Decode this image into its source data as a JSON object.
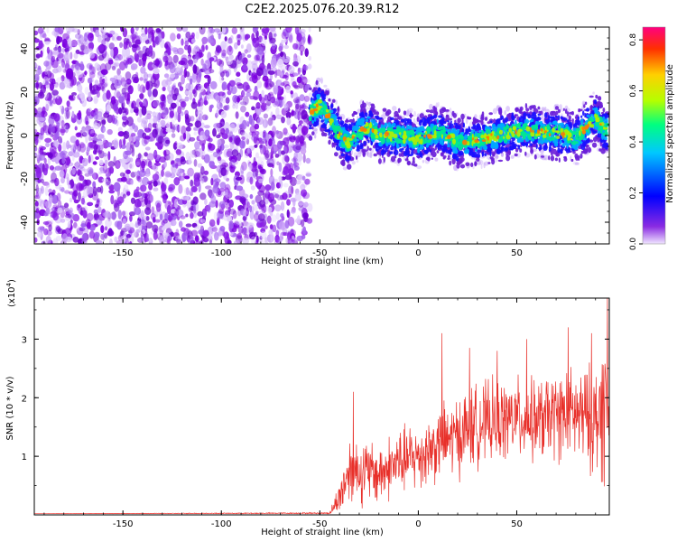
{
  "title": "C2E2.2025.076.20.39.R12",
  "chart_data": [
    {
      "type": "heatmap",
      "title": "C2E2.2025.076.20.39.R12",
      "xlabel": "Height of straight line (km)",
      "ylabel": "Frequency (Hz)",
      "xlim": [
        -195,
        97
      ],
      "ylim": [
        -50,
        50
      ],
      "x_ticks": [
        -150,
        -100,
        -50,
        0,
        50
      ],
      "y_ticks": [
        -40,
        -20,
        0,
        20,
        40
      ],
      "colorbar": {
        "label": "Normalized spectral amplitude",
        "range": [
          0.0,
          0.85
        ],
        "ticks": [
          "0.0",
          "0.2",
          "0.4",
          "0.6",
          "0.8"
        ],
        "colormap": [
          "#e6d0ff",
          "#7b00e0",
          "#0000ff",
          "#00c8ff",
          "#00ff80",
          "#b4ff00",
          "#ffd000",
          "#ff4000",
          "#ff0080"
        ]
      },
      "noise_region_x": [
        -195,
        -55
      ],
      "signal_track": {
        "x": [
          -55,
          -50,
          -45,
          -40,
          -35,
          -30,
          -25,
          -20,
          -10,
          0,
          10,
          20,
          30,
          40,
          50,
          60,
          70,
          80,
          90,
          95
        ],
        "y": [
          10,
          14,
          8,
          0,
          -4,
          2,
          4,
          0,
          0,
          -2,
          2,
          -3,
          -2,
          0,
          2,
          2,
          1,
          -1,
          8,
          2
        ]
      }
    },
    {
      "type": "line",
      "xlabel": "Height of straight line (km)",
      "ylabel": "SNR (10 * v/v)",
      "y_multiplier": "(x10",
      "y_multiplier_exp": "4",
      "xlim": [
        -195,
        97
      ],
      "ylim": [
        0,
        3.7
      ],
      "x_ticks": [
        -150,
        -100,
        -50,
        0,
        50
      ],
      "y_ticks": [
        1,
        2,
        3
      ],
      "series_color": "#e8302a",
      "envelope": {
        "x": [
          -195,
          -45,
          -40,
          -35,
          -30,
          -20,
          -10,
          0,
          10,
          20,
          30,
          40,
          50,
          60,
          70,
          80,
          90,
          95,
          97
        ],
        "mean": [
          0.02,
          0.03,
          0.3,
          0.8,
          0.75,
          0.7,
          0.9,
          1.0,
          1.2,
          1.35,
          1.55,
          1.6,
          1.65,
          1.6,
          1.7,
          1.7,
          1.6,
          1.9,
          1.5
        ],
        "spread": [
          0.0,
          0.01,
          0.25,
          0.5,
          0.5,
          0.45,
          0.5,
          0.5,
          0.55,
          0.6,
          0.6,
          0.6,
          0.6,
          0.6,
          0.65,
          0.7,
          0.8,
          1.2,
          0.8
        ]
      },
      "peaks": [
        {
          "x": -33,
          "y": 2.1
        },
        {
          "x": 12,
          "y": 3.1
        },
        {
          "x": 26,
          "y": 2.85
        },
        {
          "x": 40,
          "y": 2.8
        },
        {
          "x": 55,
          "y": 3.0
        },
        {
          "x": 76,
          "y": 3.2
        },
        {
          "x": 88,
          "y": 3.1
        },
        {
          "x": 96,
          "y": 3.7
        }
      ]
    }
  ]
}
